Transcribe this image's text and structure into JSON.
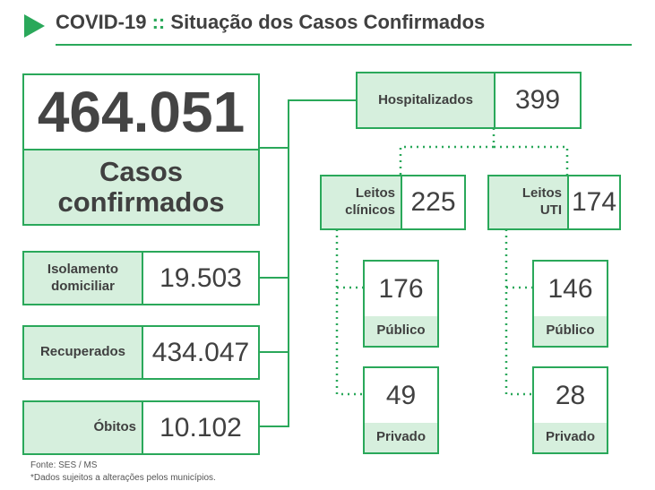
{
  "header": {
    "label": "COVID-19",
    "separator": "::",
    "title": "Situação dos Casos Confirmados"
  },
  "total": {
    "value": "464.051",
    "label": "Casos confirmados"
  },
  "left": [
    {
      "label": "Isolamento domiciliar",
      "value": "19.503"
    },
    {
      "label": "Recuperados",
      "value": "434.047"
    },
    {
      "label": "Óbitos",
      "value": "10.102"
    }
  ],
  "hospital": {
    "label": "Hospitalizados",
    "value": "399",
    "wards": [
      {
        "label": "Leitos clínicos",
        "value": "225",
        "public": {
          "value": "176",
          "label": "Público"
        },
        "private": {
          "value": "49",
          "label": "Privado"
        }
      },
      {
        "label": "Leitos UTI",
        "value": "174",
        "public": {
          "value": "146",
          "label": "Público"
        },
        "private": {
          "value": "28",
          "label": "Privado"
        }
      }
    ]
  },
  "footer": {
    "source": "Fonte: SES / MS",
    "note": "*Dados sujeitos a alterações pelos municípios."
  }
}
